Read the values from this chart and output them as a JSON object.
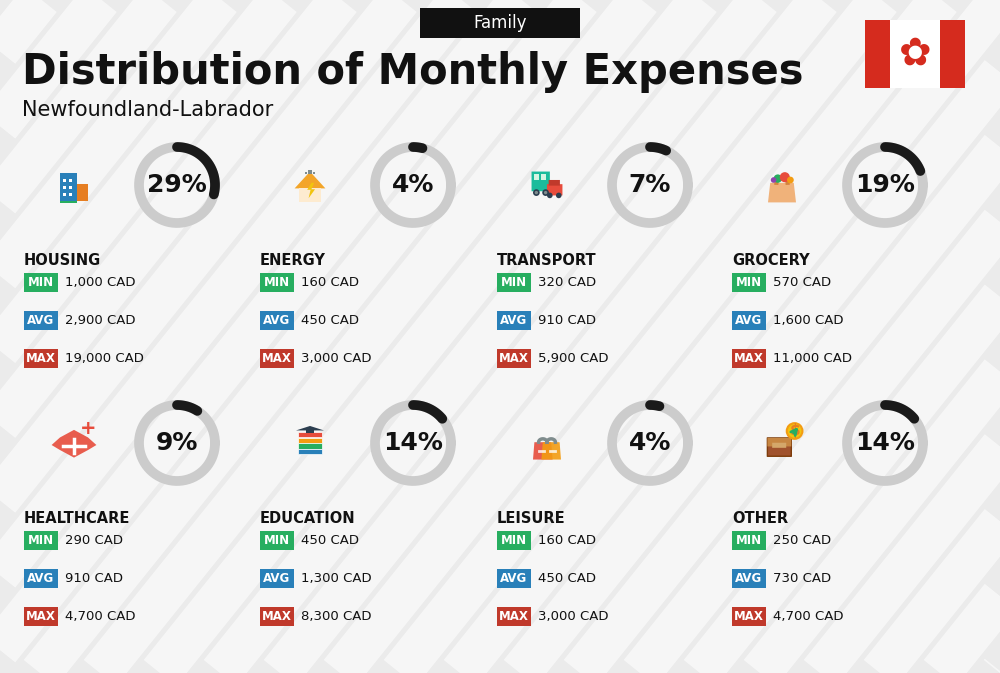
{
  "title": "Distribution of Monthly Expenses",
  "subtitle": "Newfoundland-Labrador",
  "category_label": "Family",
  "bg_color": "#ebebeb",
  "categories": [
    {
      "name": "HOUSING",
      "pct": 29,
      "min_val": "1,000 CAD",
      "avg_val": "2,900 CAD",
      "max_val": "19,000 CAD",
      "row": 0,
      "col": 0
    },
    {
      "name": "ENERGY",
      "pct": 4,
      "min_val": "160 CAD",
      "avg_val": "450 CAD",
      "max_val": "3,000 CAD",
      "row": 0,
      "col": 1
    },
    {
      "name": "TRANSPORT",
      "pct": 7,
      "min_val": "320 CAD",
      "avg_val": "910 CAD",
      "max_val": "5,900 CAD",
      "row": 0,
      "col": 2
    },
    {
      "name": "GROCERY",
      "pct": 19,
      "min_val": "570 CAD",
      "avg_val": "1,600 CAD",
      "max_val": "11,000 CAD",
      "row": 0,
      "col": 3
    },
    {
      "name": "HEALTHCARE",
      "pct": 9,
      "min_val": "290 CAD",
      "avg_val": "910 CAD",
      "max_val": "4,700 CAD",
      "row": 1,
      "col": 0
    },
    {
      "name": "EDUCATION",
      "pct": 14,
      "min_val": "450 CAD",
      "avg_val": "1,300 CAD",
      "max_val": "8,300 CAD",
      "row": 1,
      "col": 1
    },
    {
      "name": "LEISURE",
      "pct": 4,
      "min_val": "160 CAD",
      "avg_val": "450 CAD",
      "max_val": "3,000 CAD",
      "row": 1,
      "col": 2
    },
    {
      "name": "OTHER",
      "pct": 14,
      "min_val": "250 CAD",
      "avg_val": "730 CAD",
      "max_val": "4,700 CAD",
      "row": 1,
      "col": 3
    }
  ],
  "min_color": "#27ae60",
  "avg_color": "#2980b9",
  "max_color": "#c0392b",
  "donut_bg": "#cccccc",
  "donut_fg": "#1a1a1a",
  "title_fontsize": 30,
  "subtitle_fontsize": 15,
  "category_fontsize": 10.5,
  "pct_fontsize": 18,
  "val_fontsize": 9.5,
  "stripe_color": "#e0e0e0",
  "flag_red": "#d52b1e"
}
